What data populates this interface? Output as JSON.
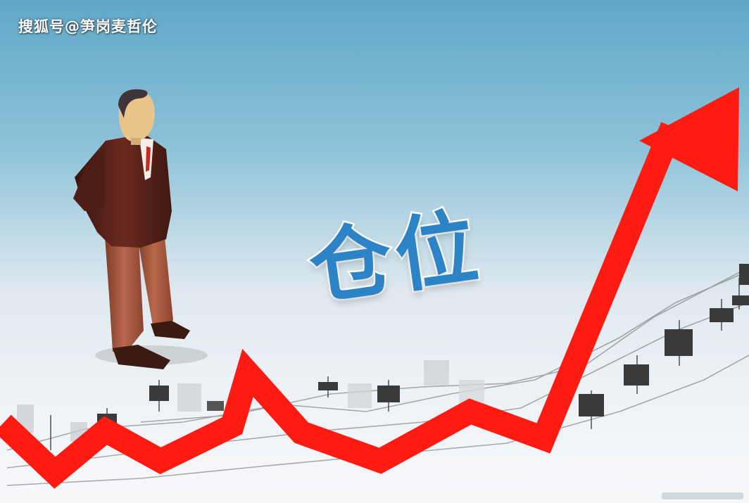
{
  "watermark": "搜狐号@笋岗麦哲伦",
  "headline": "仓位",
  "colors": {
    "background_top": "#8fc3d9",
    "background_bottom": "#f3f5f8",
    "arrow": "#ff1a12",
    "headline": "#2c84c6",
    "candle_dark": "#3a3a3a"
  }
}
